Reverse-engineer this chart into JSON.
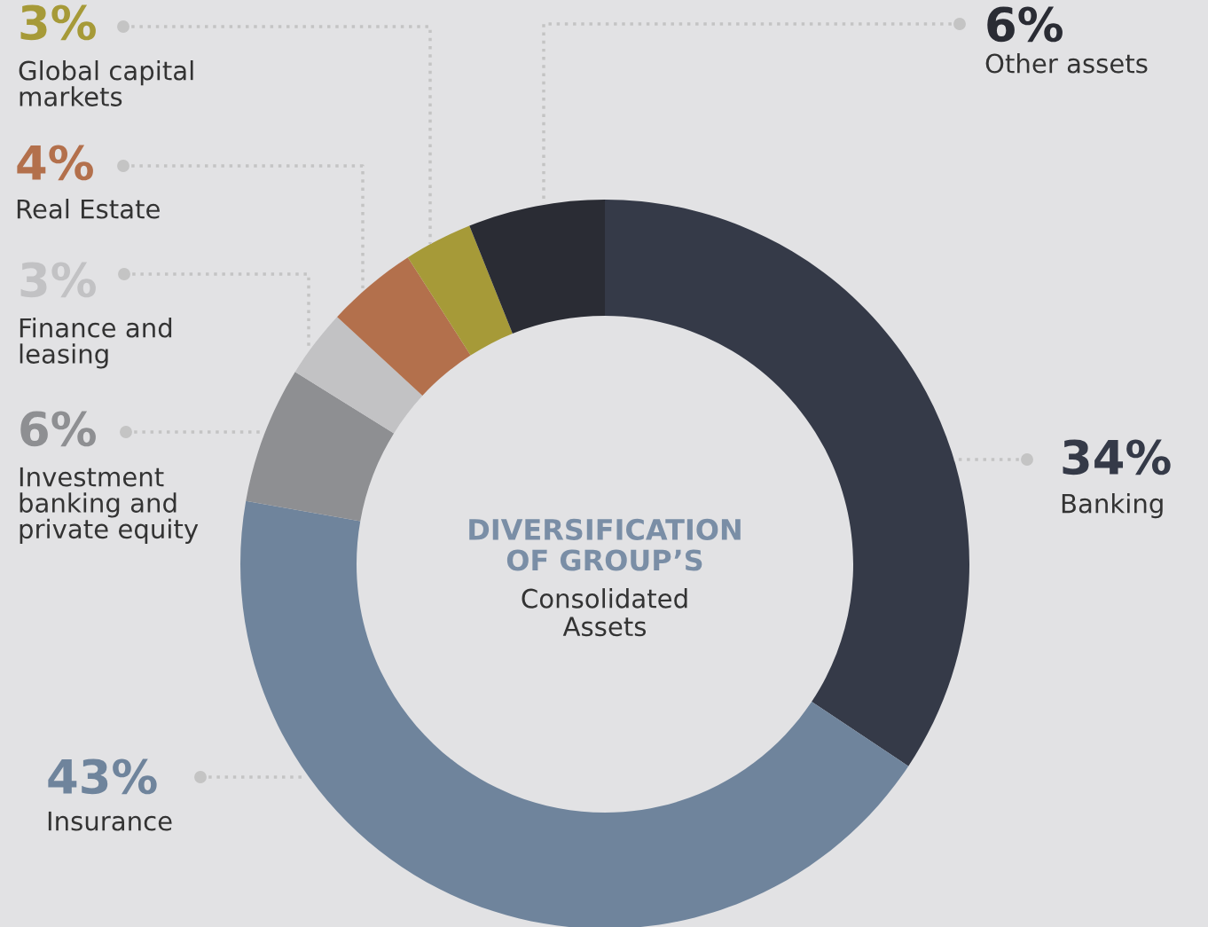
{
  "chart_data": {
    "type": "donut",
    "title": "DIVERSIFICATION OF GROUP’S",
    "subtitle": "Consolidated Assets",
    "categories": [
      "Banking",
      "Insurance",
      "Investment banking and private equity",
      "Finance and leasing",
      "Real Estate",
      "Global capital markets",
      "Other assets"
    ],
    "values": [
      34,
      43,
      6,
      3,
      4,
      3,
      6
    ],
    "value_labels": [
      "34%",
      "43%",
      "6%",
      "3%",
      "4%",
      "3%",
      "6%"
    ],
    "colors": [
      "#353a48",
      "#6f849c",
      "#8e8f92",
      "#c2c2c4",
      "#b3704c",
      "#a69a38",
      "#2a2c34"
    ],
    "legend": false
  }
}
